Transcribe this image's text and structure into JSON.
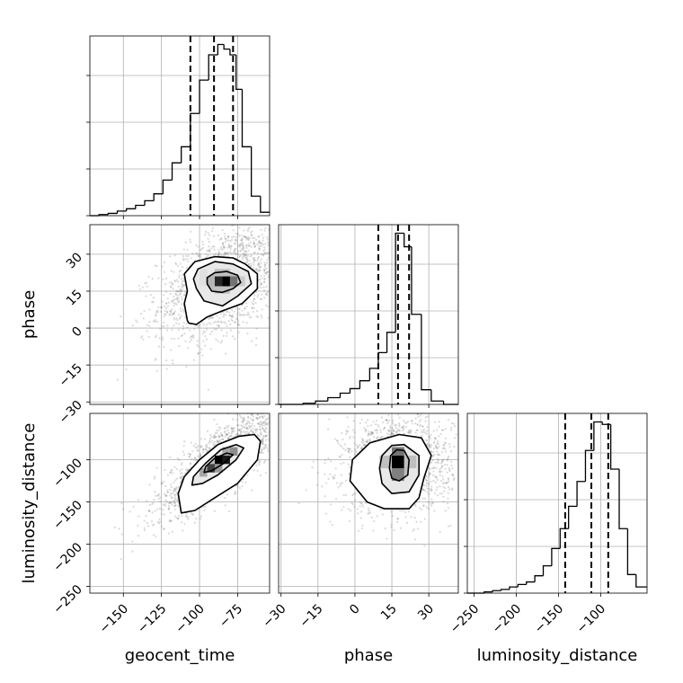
{
  "chart_data": {
    "type": "corner",
    "parameters": [
      "geocent_time",
      "phase",
      "luminosity_distance"
    ],
    "axis_labels": {
      "x": [
        "geocent_time",
        "phase",
        "luminosity_distance"
      ],
      "y": [
        "phase",
        "luminosity_distance"
      ]
    },
    "ranges": {
      "geocent_time": [
        -172,
        -54
      ],
      "phase": [
        -31,
        42
      ],
      "luminosity_distance": [
        -258,
        -45
      ]
    },
    "ticks": {
      "geocent_time": {
        "values": [
          -150,
          -125,
          -100,
          -75
        ],
        "labels": [
          "−150",
          "−125",
          "−100",
          "−75"
        ]
      },
      "phase": {
        "values": [
          -30,
          -15,
          0,
          15,
          30
        ],
        "labels": [
          "−30",
          "−15",
          "0",
          "15",
          "30"
        ]
      },
      "luminosity_distance": {
        "values": [
          -250,
          -200,
          -150,
          -100
        ],
        "labels": [
          "−250",
          "−200",
          "−150",
          "−100"
        ]
      }
    },
    "grid": true,
    "histograms": {
      "geocent_time": {
        "edges": [
          -172,
          -166,
          -160,
          -154,
          -148,
          -142,
          -136,
          -130,
          -124,
          -118,
          -112,
          -106,
          -100,
          -94,
          -88,
          -84,
          -80,
          -76,
          -72,
          -66,
          -60,
          -54
        ],
        "counts": [
          0,
          1,
          2,
          4,
          6,
          9,
          13,
          19,
          31,
          46,
          60,
          89,
          118,
          140,
          149,
          145,
          140,
          110,
          60,
          17,
          3
        ],
        "quantiles": [
          -106,
          -90.5,
          -78
        ]
      },
      "phase": {
        "edges": [
          -31,
          -26,
          -21,
          -16,
          -11,
          -6,
          -2,
          2,
          6,
          9.5,
          13,
          16.5,
          20,
          23,
          27,
          31,
          36,
          42
        ],
        "counts": [
          0,
          0,
          1,
          3,
          6,
          10,
          14,
          21,
          32,
          46,
          64,
          152,
          140,
          80,
          13,
          3,
          0
        ],
        "quantiles": [
          9.5,
          17.5,
          22
        ]
      },
      "luminosity_distance": {
        "edges": [
          -258,
          -248,
          -238,
          -228,
          -218,
          -208,
          -198,
          -188,
          -178,
          -168,
          -158,
          -148,
          -138,
          -128,
          -118,
          -108,
          -98,
          -88,
          -78,
          -68,
          -58,
          -45
        ],
        "counts": [
          0,
          0,
          1,
          2,
          3,
          5,
          7,
          9,
          14,
          22,
          36,
          52,
          70,
          90,
          115,
          138,
          136,
          100,
          52,
          15,
          5
        ],
        "quantiles": [
          -142,
          -111,
          -91
        ]
      }
    },
    "pairs": [
      {
        "x": "geocent_time",
        "y": "phase",
        "center": [
          -83,
          19
        ],
        "sigma": [
          22,
          12
        ],
        "rho": 0.45,
        "contours": [
          [
            [
              -107,
              2
            ],
            [
              -102,
              1.5
            ],
            [
              -95,
              4.5
            ],
            [
              -85,
              7
            ],
            [
              -72,
              10
            ],
            [
              -62,
              16
            ],
            [
              -62,
              22
            ],
            [
              -70,
              26
            ],
            [
              -78,
              28.5
            ],
            [
              -90,
              29
            ],
            [
              -103,
              27
            ],
            [
              -110,
              22
            ],
            [
              -108,
              15
            ],
            [
              -110,
              10
            ],
            [
              -108,
              3
            ]
          ],
          [
            [
              -102,
              16
            ],
            [
              -97,
              11
            ],
            [
              -85,
              9
            ],
            [
              -75,
              13
            ],
            [
              -66,
              18
            ],
            [
              -68,
              23
            ],
            [
              -78,
              26
            ],
            [
              -90,
              27
            ],
            [
              -101,
              24
            ],
            [
              -104,
              20
            ]
          ],
          [
            [
              -95,
              18
            ],
            [
              -92,
              15
            ],
            [
              -85,
              14.5
            ],
            [
              -78,
              16
            ],
            [
              -73,
              18.5
            ],
            [
              -75,
              21.5
            ],
            [
              -82,
              23
            ],
            [
              -90,
              22.5
            ],
            [
              -95,
              20.5
            ]
          ]
        ],
        "cells": [
          {
            "x0": -90,
            "x1": -85,
            "y0": 17,
            "y1": 21,
            "level": 0.85
          },
          {
            "x0": -85,
            "x1": -80,
            "y0": 17,
            "y1": 21,
            "level": 1.0
          },
          {
            "x0": -80,
            "x1": -75,
            "y0": 17,
            "y1": 21,
            "level": 0.55
          },
          {
            "x0": -95,
            "x1": -90,
            "y0": 17,
            "y1": 21,
            "level": 0.3
          },
          {
            "x0": -90,
            "x1": -80,
            "y0": 21,
            "y1": 24,
            "level": 0.25
          },
          {
            "x0": -90,
            "x1": -80,
            "y0": 14,
            "y1": 17,
            "level": 0.25
          },
          {
            "x0": -100,
            "x1": -95,
            "y0": 17,
            "y1": 24,
            "level": 0.12
          },
          {
            "x0": -75,
            "x1": -70,
            "y0": 17,
            "y1": 21,
            "level": 0.2
          }
        ]
      },
      {
        "x": "geocent_time",
        "y": "luminosity_distance",
        "center": [
          -85,
          -100
        ],
        "sigma": [
          22,
          34
        ],
        "rho": 0.82,
        "contours": [
          [
            [
              -112,
              -163
            ],
            [
              -103,
              -160
            ],
            [
              -90,
              -145
            ],
            [
              -75,
              -128
            ],
            [
              -62,
              -100
            ],
            [
              -60,
              -78
            ],
            [
              -64,
              -70
            ],
            [
              -74,
              -72
            ],
            [
              -88,
              -82
            ],
            [
              -100,
              -100
            ],
            [
              -110,
              -120
            ],
            [
              -114,
              -140
            ]
          ],
          [
            [
              -105,
              -130
            ],
            [
              -98,
              -128
            ],
            [
              -88,
              -118
            ],
            [
              -76,
              -100
            ],
            [
              -71,
              -86
            ],
            [
              -76,
              -82
            ],
            [
              -86,
              -88
            ],
            [
              -96,
              -104
            ],
            [
              -104,
              -120
            ]
          ],
          [
            [
              -97,
              -115
            ],
            [
              -92,
              -113
            ],
            [
              -84,
              -104
            ],
            [
              -78,
              -94
            ],
            [
              -82,
              -92
            ],
            [
              -90,
              -98
            ],
            [
              -96,
              -108
            ]
          ]
        ],
        "cells": [
          {
            "x0": -90,
            "x1": -85,
            "y0": -105,
            "y1": -95,
            "level": 1.0
          },
          {
            "x0": -85,
            "x1": -80,
            "y0": -105,
            "y1": -95,
            "level": 0.9
          },
          {
            "x0": -95,
            "x1": -90,
            "y0": -115,
            "y1": -105,
            "level": 0.75
          },
          {
            "x0": -100,
            "x1": -95,
            "y0": -120,
            "y1": -110,
            "level": 0.35
          },
          {
            "x0": -80,
            "x1": -75,
            "y0": -95,
            "y1": -85,
            "level": 0.45
          },
          {
            "x0": -90,
            "x1": -85,
            "y0": -115,
            "y1": -105,
            "level": 0.4
          },
          {
            "x0": -85,
            "x1": -80,
            "y0": -95,
            "y1": -85,
            "level": 0.35
          }
        ]
      },
      {
        "x": "phase",
        "y": "luminosity_distance",
        "center": [
          17,
          -105
        ],
        "sigma": [
          11,
          28
        ],
        "rho": 0.05,
        "contours": [
          [
            [
              -2,
              -125
            ],
            [
              -1,
              -100
            ],
            [
              6,
              -80
            ],
            [
              18,
              -70
            ],
            [
              27,
              -74
            ],
            [
              31,
              -95
            ],
            [
              28,
              -122
            ],
            [
              26,
              -145
            ],
            [
              22,
              -158
            ],
            [
              12,
              -158
            ],
            [
              5,
              -150
            ]
          ],
          [
            [
              10,
              -110
            ],
            [
              11,
              -95
            ],
            [
              15,
              -83
            ],
            [
              20,
              -82
            ],
            [
              26,
              -95
            ],
            [
              26,
              -118
            ],
            [
              22,
              -138
            ],
            [
              15,
              -140
            ],
            [
              11,
              -128
            ]
          ],
          [
            [
              14,
              -110
            ],
            [
              14.5,
              -95
            ],
            [
              17,
              -88
            ],
            [
              20,
              -89
            ],
            [
              22,
              -100
            ],
            [
              21.5,
              -118
            ],
            [
              18,
              -125
            ],
            [
              15,
              -122
            ]
          ]
        ],
        "cells": [
          {
            "x0": 15,
            "x1": 20,
            "y0": -110,
            "y1": -95,
            "level": 1.0
          },
          {
            "x0": 15,
            "x1": 20,
            "y0": -95,
            "y1": -85,
            "level": 0.55
          },
          {
            "x0": 15,
            "x1": 20,
            "y0": -125,
            "y1": -110,
            "level": 0.5
          },
          {
            "x0": 10,
            "x1": 15,
            "y0": -110,
            "y1": -95,
            "level": 0.25
          },
          {
            "x0": 20,
            "x1": 25,
            "y0": -110,
            "y1": -95,
            "level": 0.25
          }
        ]
      }
    ]
  }
}
